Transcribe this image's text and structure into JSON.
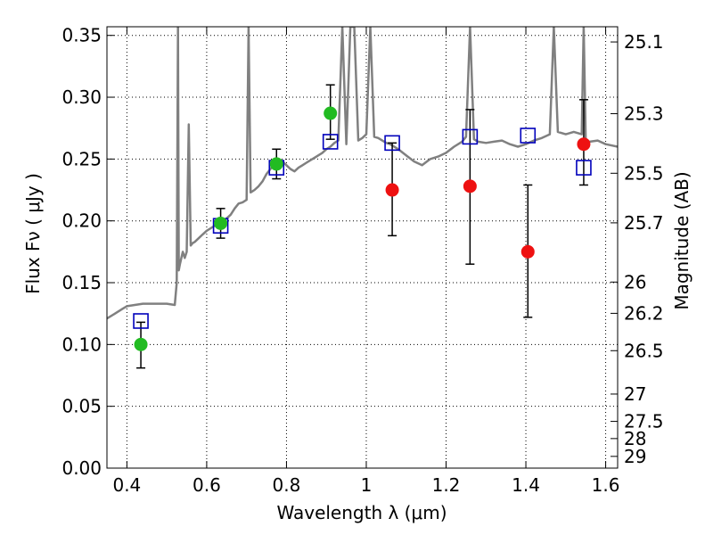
{
  "chart_data": {
    "type": "scatter",
    "xlabel": "Wavelength  λ (μm)",
    "ylabel": "Flux  Fν  ( μJy )",
    "ylabel_right": "Magnitude (AB)",
    "xlim": [
      0.35,
      1.63
    ],
    "ylim": [
      0.0,
      0.357
    ],
    "grid": true,
    "x_ticks": [
      0.4,
      0.6,
      0.8,
      1.0,
      1.2,
      1.4,
      1.6
    ],
    "x_tick_labels": [
      "0.4",
      "0.6",
      "0.8",
      "1",
      "1.2",
      "1.4",
      "1.6"
    ],
    "y_ticks": [
      0.0,
      0.05,
      0.1,
      0.15,
      0.2,
      0.25,
      0.3,
      0.35
    ],
    "y_tick_labels": [
      "0.00",
      "0.05",
      "0.10",
      "0.15",
      "0.20",
      "0.25",
      "0.30",
      "0.35"
    ],
    "right_ticks": [
      {
        "label": "25.1",
        "flux": 0.3447
      },
      {
        "label": "25.3",
        "flux": 0.2867
      },
      {
        "label": "25.5",
        "flux": 0.2385
      },
      {
        "label": "25.7",
        "flux": 0.1984
      },
      {
        "label": "26",
        "flux": 0.1505
      },
      {
        "label": "26.2",
        "flux": 0.1252
      },
      {
        "label": "26.5",
        "flux": 0.095
      },
      {
        "label": "27",
        "flux": 0.0599
      },
      {
        "label": "27.5",
        "flux": 0.0378
      },
      {
        "label": "28",
        "flux": 0.0239
      },
      {
        "label": "29",
        "flux": 0.0095
      }
    ],
    "series": [
      {
        "kind": "model",
        "color": "#808080",
        "x": [
          0.35,
          0.37,
          0.39,
          0.4,
          0.42,
          0.44,
          0.46,
          0.48,
          0.5,
          0.52,
          0.525,
          0.528,
          0.53,
          0.533,
          0.54,
          0.545,
          0.55,
          0.555,
          0.56,
          0.565,
          0.57,
          0.58,
          0.59,
          0.6,
          0.61,
          0.62,
          0.63,
          0.64,
          0.65,
          0.66,
          0.67,
          0.68,
          0.69,
          0.7,
          0.705,
          0.71,
          0.715,
          0.72,
          0.73,
          0.74,
          0.75,
          0.76,
          0.77,
          0.78,
          0.79,
          0.8,
          0.81,
          0.82,
          0.83,
          0.84,
          0.85,
          0.86,
          0.87,
          0.88,
          0.89,
          0.9,
          0.91,
          0.92,
          0.93,
          0.94,
          0.95,
          0.96,
          0.97,
          0.98,
          0.99,
          1.0,
          1.01,
          1.02,
          1.03,
          1.04,
          1.05,
          1.06,
          1.08,
          1.1,
          1.12,
          1.14,
          1.16,
          1.18,
          1.2,
          1.22,
          1.24,
          1.25,
          1.26,
          1.27,
          1.28,
          1.3,
          1.32,
          1.34,
          1.36,
          1.38,
          1.4,
          1.42,
          1.44,
          1.46,
          1.47,
          1.48,
          1.5,
          1.52,
          1.54,
          1.545,
          1.55,
          1.555,
          1.56,
          1.58,
          1.6,
          1.63
        ],
        "y": [
          0.121,
          0.125,
          0.129,
          0.131,
          0.132,
          0.133,
          0.133,
          0.133,
          0.133,
          0.132,
          0.15,
          0.357,
          0.16,
          0.165,
          0.175,
          0.17,
          0.175,
          0.278,
          0.18,
          0.182,
          0.183,
          0.186,
          0.189,
          0.192,
          0.194,
          0.196,
          0.199,
          0.2,
          0.202,
          0.205,
          0.21,
          0.214,
          0.215,
          0.217,
          0.357,
          0.223,
          0.224,
          0.225,
          0.228,
          0.232,
          0.238,
          0.242,
          0.247,
          0.25,
          0.248,
          0.245,
          0.242,
          0.24,
          0.243,
          0.245,
          0.247,
          0.249,
          0.251,
          0.253,
          0.255,
          0.258,
          0.26,
          0.263,
          0.265,
          0.357,
          0.262,
          0.357,
          0.357,
          0.265,
          0.267,
          0.27,
          0.357,
          0.268,
          0.267,
          0.265,
          0.263,
          0.262,
          0.258,
          0.253,
          0.248,
          0.245,
          0.25,
          0.252,
          0.255,
          0.26,
          0.264,
          0.268,
          0.357,
          0.266,
          0.264,
          0.263,
          0.264,
          0.265,
          0.262,
          0.26,
          0.262,
          0.265,
          0.267,
          0.27,
          0.357,
          0.272,
          0.27,
          0.272,
          0.27,
          0.357,
          0.265,
          0.262,
          0.264,
          0.265,
          0.262,
          0.26
        ]
      },
      {
        "kind": "model-photometry",
        "marker": "open-square",
        "color": "#0000bb",
        "x": [
          0.435,
          0.635,
          0.775,
          0.91,
          1.065,
          1.26,
          1.405,
          1.545
        ],
        "y": [
          0.119,
          0.196,
          0.243,
          0.264,
          0.263,
          0.268,
          0.269,
          0.243
        ]
      },
      {
        "kind": "observed",
        "marker": "filled-circle",
        "color": "#22bb22",
        "x": [
          0.435,
          0.635,
          0.775,
          0.91
        ],
        "y": [
          0.1,
          0.198,
          0.246,
          0.287
        ],
        "err_low": [
          0.081,
          0.186,
          0.234,
          0.266
        ],
        "err_high": [
          0.118,
          0.21,
          0.258,
          0.31
        ]
      },
      {
        "kind": "observed",
        "marker": "filled-circle",
        "color": "#ee1111",
        "x": [
          1.065,
          1.26,
          1.405,
          1.545
        ],
        "y": [
          0.225,
          0.228,
          0.175,
          0.262
        ],
        "err_low": [
          0.188,
          0.165,
          0.122,
          0.229
        ],
        "err_high": [
          0.263,
          0.29,
          0.229,
          0.298
        ]
      }
    ]
  }
}
